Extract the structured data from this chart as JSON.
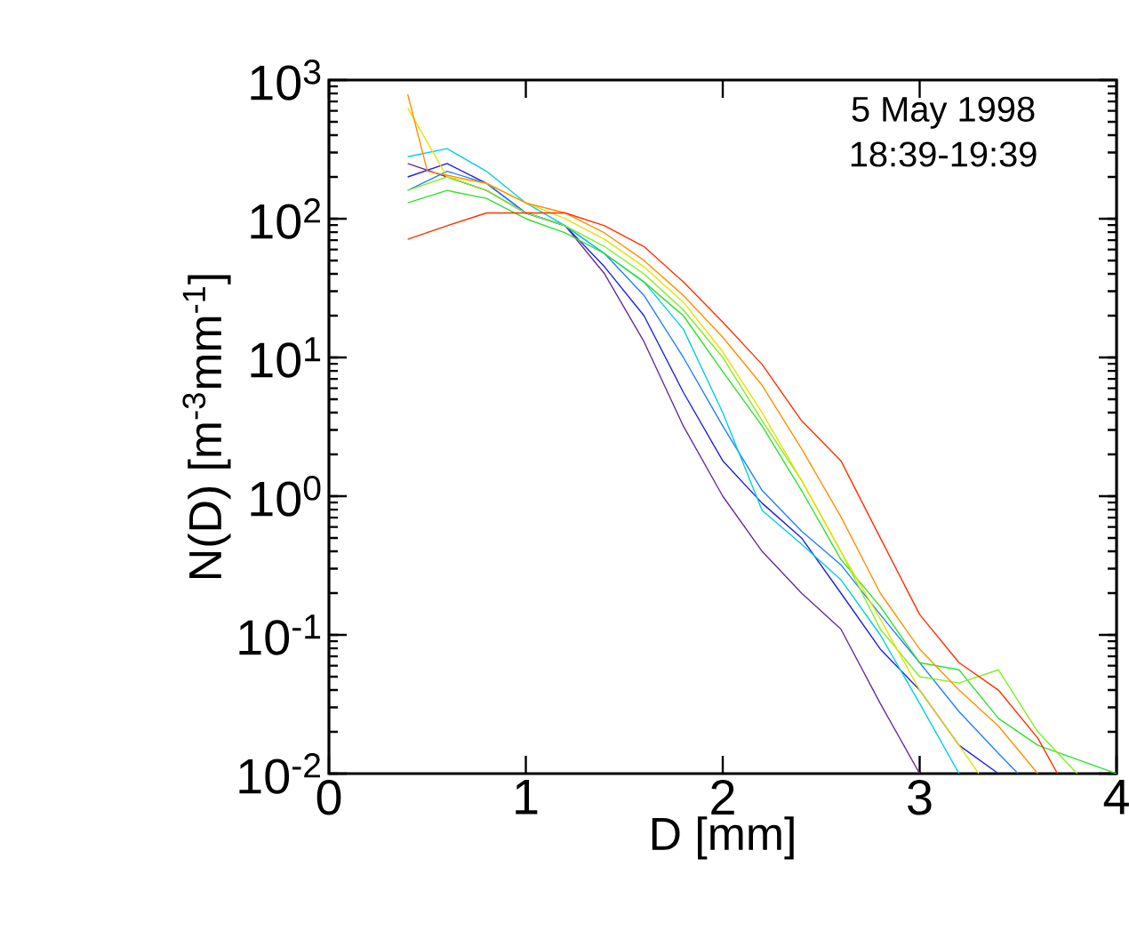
{
  "chart_data": {
    "type": "line",
    "xlabel": "D [mm]",
    "ylabel": "N(D) [m$^{-3}$mm$^{-1}$]",
    "annotations": [
      "5 May 1998",
      "18:39-19:39"
    ],
    "log": "y",
    "grid": false,
    "marker": "none",
    "line_style": "solid",
    "xlim": [
      0,
      4
    ],
    "ylim": [
      0.01,
      1000
    ],
    "xticks": [
      0,
      1,
      2,
      3,
      4
    ],
    "yticks": [
      {
        "value": 0.01,
        "label": "10$^{-2}$"
      },
      {
        "value": 0.1,
        "label": "10$^{-1}$"
      },
      {
        "value": 1,
        "label": "10$^{0}$"
      },
      {
        "value": 10,
        "label": "10$^{1}$"
      },
      {
        "value": 100,
        "label": "10$^{2}$"
      },
      {
        "value": 1000,
        "label": "10$^{3}$"
      }
    ],
    "series": [
      {
        "color": "#6a2c9a",
        "x": [
          0.4,
          0.6,
          0.8,
          1.0,
          1.2,
          1.4,
          1.6,
          1.8,
          2.0,
          2.2,
          2.4,
          2.6,
          2.8,
          3.0
        ],
        "values": [
          250,
          200,
          160,
          110,
          89,
          40,
          13,
          3.2,
          1.0,
          0.4,
          0.2,
          0.11,
          0.032,
          0.01
        ]
      },
      {
        "color": "#2020e0",
        "x": [
          0.4,
          0.6,
          0.8,
          1.0,
          1.2,
          1.4,
          1.6,
          1.8,
          2.0,
          2.2,
          2.4,
          2.6,
          2.8,
          3.0,
          3.2,
          3.4
        ],
        "values": [
          200,
          250,
          180,
          110,
          89,
          45,
          20,
          5.6,
          1.8,
          0.89,
          0.5,
          0.2,
          0.079,
          0.04,
          0.016,
          0.01
        ]
      },
      {
        "color": "#2080ff",
        "x": [
          0.4,
          0.6,
          0.8,
          1.0,
          1.2,
          1.4,
          1.6,
          1.8,
          2.0,
          2.2,
          2.4,
          2.6,
          2.8,
          3.0,
          3.2,
          3.4,
          3.5
        ],
        "values": [
          160,
          220,
          180,
          110,
          89,
          56,
          28,
          10,
          3.2,
          1.1,
          0.56,
          0.32,
          0.14,
          0.063,
          0.028,
          0.014,
          0.01
        ]
      },
      {
        "color": "#00d0e0",
        "x": [
          0.4,
          0.6,
          0.8,
          1.0,
          1.2,
          1.4,
          1.6,
          1.8,
          2.0,
          2.2,
          2.4,
          2.6,
          2.8,
          3.0,
          3.2
        ],
        "values": [
          280,
          320,
          220,
          130,
          89,
          56,
          35,
          16,
          4.0,
          0.79,
          0.45,
          0.25,
          0.1,
          0.032,
          0.01
        ]
      },
      {
        "color": "#30e030",
        "x": [
          0.4,
          0.6,
          0.8,
          1.0,
          1.2,
          1.4,
          1.6,
          1.8,
          2.0,
          2.2,
          2.4,
          2.6,
          2.8,
          3.0,
          3.2,
          3.4,
          3.6,
          4.0
        ],
        "values": [
          130,
          160,
          140,
          100,
          79,
          56,
          35,
          20,
          7.9,
          3.2,
          1.1,
          0.35,
          0.16,
          0.063,
          0.056,
          0.025,
          0.016,
          0.01
        ]
      },
      {
        "color": "#80f020",
        "x": [
          0.4,
          0.6,
          0.8,
          1.0,
          1.2,
          1.4,
          1.6,
          1.8,
          2.0,
          2.2,
          2.4,
          2.6,
          2.8,
          3.0,
          3.2,
          3.4,
          3.6,
          3.8
        ],
        "values": [
          160,
          200,
          160,
          110,
          89,
          63,
          40,
          22,
          10,
          3.5,
          1.3,
          0.4,
          0.11,
          0.05,
          0.045,
          0.056,
          0.02,
          0.01
        ]
      },
      {
        "color": "#e8e000",
        "x": [
          0.4,
          0.6,
          0.8,
          1.0,
          1.2,
          1.4,
          1.6,
          1.8,
          2.0,
          2.2,
          2.4,
          2.6,
          2.8,
          3.0,
          3.2,
          3.3
        ],
        "values": [
          630,
          200,
          180,
          130,
          100,
          71,
          45,
          25,
          11,
          4.0,
          1.3,
          0.4,
          0.13,
          0.04,
          0.016,
          0.01
        ]
      },
      {
        "color": "#ff9000",
        "x": [
          0.4,
          0.5,
          0.8,
          1.0,
          1.2,
          1.4,
          1.6,
          1.8,
          2.0,
          2.2,
          2.4,
          2.6,
          2.8,
          3.0,
          3.2,
          3.4,
          3.6
        ],
        "values": [
          790,
          220,
          180,
          130,
          110,
          79,
          50,
          28,
          14,
          6.3,
          2.2,
          0.71,
          0.2,
          0.079,
          0.04,
          0.022,
          0.01
        ]
      },
      {
        "color": "#ff3000",
        "x": [
          0.4,
          0.6,
          0.8,
          1.0,
          1.2,
          1.4,
          1.6,
          1.8,
          2.0,
          2.2,
          2.4,
          2.6,
          2.8,
          3.0,
          3.2,
          3.4,
          3.6,
          3.7
        ],
        "values": [
          71,
          89,
          110,
          110,
          110,
          89,
          63,
          35,
          18,
          8.9,
          3.5,
          1.8,
          0.5,
          0.14,
          0.063,
          0.04,
          0.018,
          0.01
        ]
      }
    ]
  }
}
